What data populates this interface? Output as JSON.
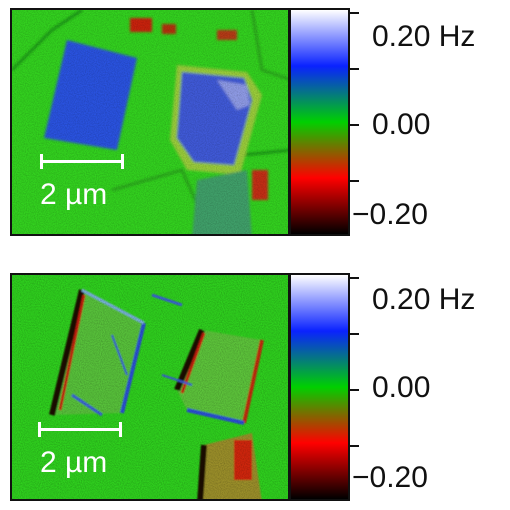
{
  "panels": [
    {
      "scale_label": "2 µm",
      "colorbar": {
        "max_label": "0.20 Hz",
        "mid_label": "0.00",
        "min_label": "−0.20"
      }
    },
    {
      "scale_label": "2 µm",
      "colorbar": {
        "max_label": "0.20 Hz",
        "mid_label": "0.00",
        "min_label": "−0.20"
      }
    }
  ],
  "colors": {
    "background_green": "#33d21f",
    "domain_blue": "#2b52e0",
    "edge_red": "#d81a10",
    "colorbar_stops": [
      "#ffffff",
      "#0a22ff",
      "#00d000",
      "#ff0000",
      "#000000"
    ]
  }
}
